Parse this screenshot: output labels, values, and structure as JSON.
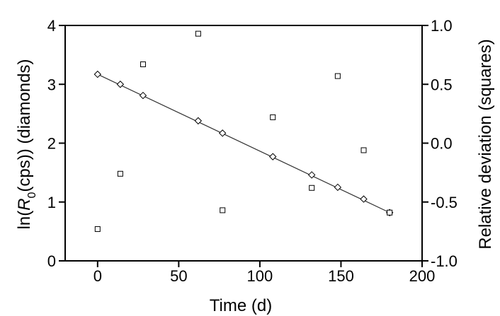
{
  "chart_data": {
    "type": "scatter",
    "xlabel": "Time (d)",
    "ylabel_left": {
      "prefix": "ln(",
      "symbol": "R",
      "subscript": "0",
      "suffix": "(cps)) (diamonds)"
    },
    "ylabel_right": "Relative deviation (squares)",
    "x_ticks": [
      "0",
      "50",
      "100",
      "150",
      "200"
    ],
    "y_left_ticks": [
      "0",
      "1",
      "2",
      "3",
      "4"
    ],
    "y_right_ticks": [
      "-1.0",
      "-0.5",
      "0.0",
      "0.5",
      "1.0"
    ],
    "xlim": [
      -20,
      200
    ],
    "ylim_left": [
      0,
      4
    ],
    "ylim_right": [
      -1.0,
      1.0
    ],
    "grid": false,
    "legend": "none",
    "series": [
      {
        "marker": "diamond",
        "axis": "left",
        "points": [
          [
            0,
            3.17
          ],
          [
            14,
            3.0
          ],
          [
            28,
            2.81
          ],
          [
            62,
            2.38
          ],
          [
            77,
            2.17
          ],
          [
            108,
            1.77
          ],
          [
            132,
            1.46
          ],
          [
            148,
            1.25
          ],
          [
            164,
            1.05
          ],
          [
            180,
            0.82
          ]
        ]
      },
      {
        "marker": "square",
        "axis": "right",
        "points": [
          [
            0,
            -0.73
          ],
          [
            14,
            -0.26
          ],
          [
            28,
            0.67
          ],
          [
            62,
            0.93
          ],
          [
            77,
            -0.57
          ],
          [
            108,
            0.22
          ],
          [
            132,
            -0.38
          ],
          [
            148,
            0.57
          ],
          [
            164,
            -0.06
          ],
          [
            180,
            -0.59
          ]
        ]
      }
    ],
    "fit_line": {
      "axis": "left",
      "x": [
        0,
        180
      ],
      "y": [
        3.17,
        0.82
      ]
    }
  }
}
